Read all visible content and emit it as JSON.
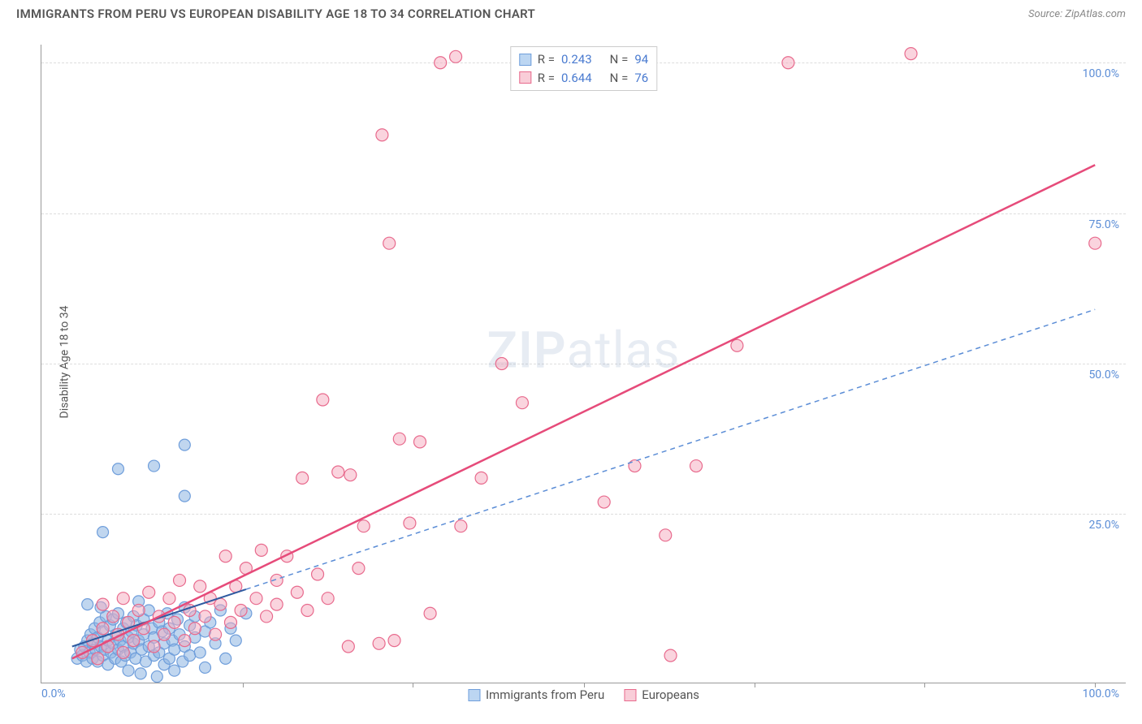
{
  "header": {
    "title": "IMMIGRANTS FROM PERU VS EUROPEAN DISABILITY AGE 18 TO 34 CORRELATION CHART",
    "source_label": "Source: ZipAtlas.com"
  },
  "chart": {
    "type": "scatter",
    "ylabel": "Disability Age 18 to 34",
    "xlim": [
      -3,
      103
    ],
    "ylim": [
      -3,
      103
    ],
    "grid_color": "#dddddd",
    "axis_color": "#999999",
    "background_color": "#ffffff",
    "y_ticks": [
      {
        "v": 25,
        "label": "25.0%"
      },
      {
        "v": 50,
        "label": "50.0%"
      },
      {
        "v": 75,
        "label": "75.0%"
      },
      {
        "v": 100,
        "label": "100.0%"
      }
    ],
    "x_tick_marks_at": [
      16.7,
      33.3,
      50,
      66.7,
      83.3,
      100
    ],
    "x_origin_label": "0.0%",
    "x_end_label": "100.0%",
    "tick_label_color": "#5b8dd6",
    "tick_fontsize": 14,
    "watermark": "ZIPatlas",
    "legend_top": {
      "rows": [
        {
          "swatch_fill": "#bcd6f2",
          "swatch_stroke": "#6f9edb",
          "r_label": "R =",
          "r_value": "0.243",
          "n_label": "N =",
          "n_value": "94"
        },
        {
          "swatch_fill": "#f9cdd8",
          "swatch_stroke": "#e86a8d",
          "r_label": "R =",
          "r_value": "0.644",
          "n_label": "N =",
          "n_value": "76"
        }
      ]
    },
    "legend_bottom": {
      "items": [
        {
          "swatch_fill": "#bcd6f2",
          "swatch_stroke": "#6f9edb",
          "label": "Immigrants from Peru"
        },
        {
          "swatch_fill": "#f9cdd8",
          "swatch_stroke": "#e86a8d",
          "label": "Europeans"
        }
      ]
    },
    "series": [
      {
        "name": "peru",
        "marker_fill": "rgba(141,180,226,0.55)",
        "marker_stroke": "#6f9edb",
        "marker_r": 7,
        "trend": {
          "x1": 0,
          "y1": 3,
          "x2": 17,
          "y2": 12.5,
          "stroke": "#2e5aa0",
          "width": 2,
          "dash": "none"
        },
        "trend_ext": {
          "x1": 17,
          "y1": 12.5,
          "x2": 100,
          "y2": 59,
          "stroke": "#5b8dd6",
          "width": 1.5,
          "dash": "6 5"
        },
        "points": [
          {
            "x": 0.5,
            "y": 1
          },
          {
            "x": 0.8,
            "y": 2.5
          },
          {
            "x": 1,
            "y": 1.5
          },
          {
            "x": 1.2,
            "y": 3
          },
          {
            "x": 1.4,
            "y": 0.5
          },
          {
            "x": 1.5,
            "y": 4
          },
          {
            "x": 1.7,
            "y": 2
          },
          {
            "x": 1.8,
            "y": 5
          },
          {
            "x": 2,
            "y": 1
          },
          {
            "x": 2,
            "y": 3.5
          },
          {
            "x": 2.2,
            "y": 6
          },
          {
            "x": 2.3,
            "y": 2.5
          },
          {
            "x": 2.5,
            "y": 4.5
          },
          {
            "x": 2.5,
            "y": 0.5
          },
          {
            "x": 2.7,
            "y": 7
          },
          {
            "x": 2.8,
            "y": 3
          },
          {
            "x": 3,
            "y": 5.5
          },
          {
            "x": 3,
            "y": 1.5
          },
          {
            "x": 3.2,
            "y": 2.5
          },
          {
            "x": 3.3,
            "y": 8
          },
          {
            "x": 3.5,
            "y": 4
          },
          {
            "x": 3.5,
            "y": 0
          },
          {
            "x": 3.7,
            "y": 6.5
          },
          {
            "x": 3.8,
            "y": 2
          },
          {
            "x": 4,
            "y": 3.5
          },
          {
            "x": 4,
            "y": 7.5
          },
          {
            "x": 4.2,
            "y": 1
          },
          {
            "x": 4.3,
            "y": 5
          },
          {
            "x": 4.5,
            "y": 2.5
          },
          {
            "x": 4.5,
            "y": 8.5
          },
          {
            "x": 4.7,
            "y": 4
          },
          {
            "x": 4.8,
            "y": 0.5
          },
          {
            "x": 5,
            "y": 6
          },
          {
            "x": 5,
            "y": 3
          },
          {
            "x": 5.2,
            "y": 1.5
          },
          {
            "x": 5.3,
            "y": 7
          },
          {
            "x": 5.5,
            "y": 4.5
          },
          {
            "x": 5.5,
            "y": -1
          },
          {
            "x": 5.7,
            "y": 2
          },
          {
            "x": 5.8,
            "y": 5.5
          },
          {
            "x": 6,
            "y": 3.5
          },
          {
            "x": 6,
            "y": 8
          },
          {
            "x": 6.2,
            "y": 1
          },
          {
            "x": 6.3,
            "y": 6.5
          },
          {
            "x": 6.5,
            "y": 4
          },
          {
            "x": 6.7,
            "y": -1.5
          },
          {
            "x": 6.8,
            "y": 2.5
          },
          {
            "x": 7,
            "y": 7.5
          },
          {
            "x": 7,
            "y": 5
          },
          {
            "x": 7.2,
            "y": 0.5
          },
          {
            "x": 7.5,
            "y": 3
          },
          {
            "x": 7.5,
            "y": 9
          },
          {
            "x": 7.8,
            "y": 6
          },
          {
            "x": 8,
            "y": 1.5
          },
          {
            "x": 8,
            "y": 4.5
          },
          {
            "x": 8.3,
            "y": -2
          },
          {
            "x": 8.5,
            "y": 2
          },
          {
            "x": 8.5,
            "y": 7
          },
          {
            "x": 8.8,
            "y": 5.5
          },
          {
            "x": 9,
            "y": 0
          },
          {
            "x": 9,
            "y": 3.5
          },
          {
            "x": 9.3,
            "y": 8.5
          },
          {
            "x": 9.5,
            "y": 1
          },
          {
            "x": 9.5,
            "y": 6
          },
          {
            "x": 9.8,
            "y": 4
          },
          {
            "x": 10,
            "y": -1
          },
          {
            "x": 10,
            "y": 2.5
          },
          {
            "x": 10.3,
            "y": 7.5
          },
          {
            "x": 10.5,
            "y": 5
          },
          {
            "x": 10.8,
            "y": 0.5
          },
          {
            "x": 11,
            "y": 3
          },
          {
            "x": 11,
            "y": 9.5
          },
          {
            "x": 11.5,
            "y": 6.5
          },
          {
            "x": 11.5,
            "y": 1.5
          },
          {
            "x": 12,
            "y": 4.5
          },
          {
            "x": 12,
            "y": 8
          },
          {
            "x": 12.5,
            "y": 2
          },
          {
            "x": 13,
            "y": 5.5
          },
          {
            "x": 13,
            "y": -0.5
          },
          {
            "x": 13.5,
            "y": 7
          },
          {
            "x": 14,
            "y": 3.5
          },
          {
            "x": 14.5,
            "y": 9
          },
          {
            "x": 15,
            "y": 1
          },
          {
            "x": 15.5,
            "y": 6
          },
          {
            "x": 16,
            "y": 4
          },
          {
            "x": 17,
            "y": 8.5
          },
          {
            "x": 3,
            "y": 22
          },
          {
            "x": 4.5,
            "y": 32.5
          },
          {
            "x": 8,
            "y": 33
          },
          {
            "x": 11,
            "y": 36.5
          },
          {
            "x": 11,
            "y": 28
          },
          {
            "x": 1.5,
            "y": 10
          },
          {
            "x": 2.8,
            "y": 9.5
          },
          {
            "x": 6.5,
            "y": 10.5
          }
        ]
      },
      {
        "name": "europeans",
        "marker_fill": "rgba(245,170,190,0.5)",
        "marker_stroke": "#e86a8d",
        "marker_r": 7.5,
        "trend": {
          "x1": 0,
          "y1": 1,
          "x2": 100,
          "y2": 83,
          "stroke": "#e64b7a",
          "width": 2.5,
          "dash": "none"
        },
        "points": [
          {
            "x": 1,
            "y": 2
          },
          {
            "x": 2,
            "y": 4
          },
          {
            "x": 2.5,
            "y": 1
          },
          {
            "x": 3,
            "y": 6
          },
          {
            "x": 3,
            "y": 10
          },
          {
            "x": 3.5,
            "y": 3
          },
          {
            "x": 4,
            "y": 8
          },
          {
            "x": 4.5,
            "y": 5
          },
          {
            "x": 5,
            "y": 11
          },
          {
            "x": 5,
            "y": 2
          },
          {
            "x": 5.5,
            "y": 7
          },
          {
            "x": 6,
            "y": 4
          },
          {
            "x": 6.5,
            "y": 9
          },
          {
            "x": 7,
            "y": 6
          },
          {
            "x": 7.5,
            "y": 12
          },
          {
            "x": 8,
            "y": 3
          },
          {
            "x": 8.5,
            "y": 8
          },
          {
            "x": 9,
            "y": 5
          },
          {
            "x": 9.5,
            "y": 11
          },
          {
            "x": 10,
            "y": 7
          },
          {
            "x": 10.5,
            "y": 14
          },
          {
            "x": 11,
            "y": 4
          },
          {
            "x": 11.5,
            "y": 9
          },
          {
            "x": 12,
            "y": 6
          },
          {
            "x": 12.5,
            "y": 13
          },
          {
            "x": 13,
            "y": 8
          },
          {
            "x": 13.5,
            "y": 11
          },
          {
            "x": 14,
            "y": 5
          },
          {
            "x": 14.5,
            "y": 10
          },
          {
            "x": 15,
            "y": 18
          },
          {
            "x": 15.5,
            "y": 7
          },
          {
            "x": 16,
            "y": 13
          },
          {
            "x": 16.5,
            "y": 9
          },
          {
            "x": 17,
            "y": 16
          },
          {
            "x": 18,
            "y": 11
          },
          {
            "x": 18.5,
            "y": 19
          },
          {
            "x": 19,
            "y": 8
          },
          {
            "x": 20,
            "y": 14
          },
          {
            "x": 20,
            "y": 10
          },
          {
            "x": 21,
            "y": 18
          },
          {
            "x": 22,
            "y": 12
          },
          {
            "x": 22.5,
            "y": 31
          },
          {
            "x": 23,
            "y": 9
          },
          {
            "x": 24,
            "y": 15
          },
          {
            "x": 24.5,
            "y": 44
          },
          {
            "x": 25,
            "y": 11
          },
          {
            "x": 26,
            "y": 32
          },
          {
            "x": 27,
            "y": 3
          },
          {
            "x": 27.2,
            "y": 31.5
          },
          {
            "x": 28,
            "y": 16
          },
          {
            "x": 28.5,
            "y": 23
          },
          {
            "x": 30,
            "y": 3.5
          },
          {
            "x": 30.3,
            "y": 88
          },
          {
            "x": 31,
            "y": 70
          },
          {
            "x": 31.5,
            "y": 4
          },
          {
            "x": 32,
            "y": 37.5
          },
          {
            "x": 33,
            "y": 23.5
          },
          {
            "x": 34,
            "y": 37
          },
          {
            "x": 35,
            "y": 8.5
          },
          {
            "x": 36,
            "y": 100
          },
          {
            "x": 38,
            "y": 23
          },
          {
            "x": 40,
            "y": 31
          },
          {
            "x": 42,
            "y": 50
          },
          {
            "x": 44,
            "y": 43.5
          },
          {
            "x": 47,
            "y": 100
          },
          {
            "x": 49.5,
            "y": 100
          },
          {
            "x": 52,
            "y": 27
          },
          {
            "x": 55,
            "y": 33
          },
          {
            "x": 58,
            "y": 21.5
          },
          {
            "x": 58.5,
            "y": 1.5
          },
          {
            "x": 61,
            "y": 33
          },
          {
            "x": 65,
            "y": 53
          },
          {
            "x": 70,
            "y": 100
          },
          {
            "x": 82,
            "y": 101.5
          },
          {
            "x": 100,
            "y": 70
          },
          {
            "x": 37.5,
            "y": 101
          }
        ]
      }
    ]
  }
}
